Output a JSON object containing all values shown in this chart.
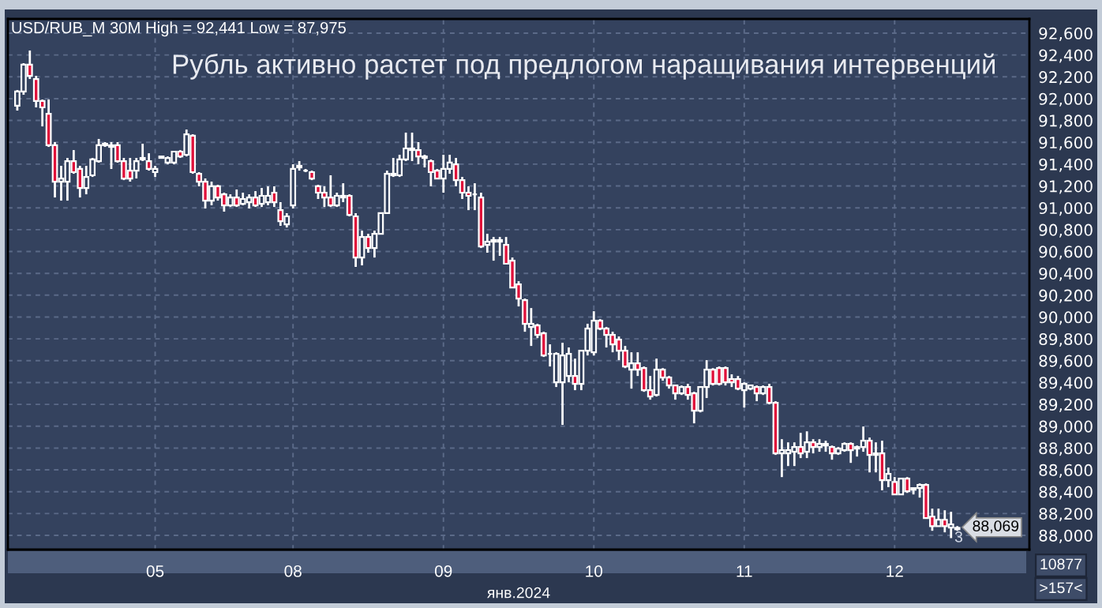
{
  "chart_data": {
    "type": "candlestick",
    "title": "USD/RUB_M 30M High = 92,441 Low = 87,975",
    "subtitle": "Рубль активно растет под предлогом наращивания интервенций",
    "xlabel": "янв.2024",
    "annotations": [
      "88,069",
      "3",
      "10877",
      ">157<"
    ],
    "categories": [
      null,
      null,
      null,
      null,
      null,
      null,
      null,
      null,
      null,
      null,
      null,
      null,
      null,
      null,
      null,
      null,
      null,
      null,
      null,
      null,
      null,
      null,
      "05",
      null,
      null,
      null,
      null,
      null,
      null,
      null,
      null,
      null,
      null,
      null,
      null,
      null,
      null,
      null,
      null,
      null,
      null,
      null,
      null,
      null,
      "08",
      null,
      null,
      null,
      null,
      null,
      null,
      null,
      null,
      null,
      null,
      null,
      null,
      null,
      null,
      null,
      null,
      null,
      null,
      null,
      null,
      null,
      null,
      null,
      "09",
      null,
      null,
      null,
      null,
      null,
      null,
      null,
      null,
      null,
      null,
      null,
      null,
      null,
      null,
      null,
      null,
      null,
      null,
      null,
      null,
      null,
      null,
      null,
      "10",
      null,
      null,
      null,
      null,
      null,
      null,
      null,
      null,
      null,
      null,
      null,
      null,
      null,
      null,
      null,
      null,
      null,
      null,
      null,
      null,
      null,
      null,
      null,
      "11",
      null,
      null,
      null,
      null,
      null,
      null,
      null,
      null,
      null,
      null,
      null,
      null,
      null,
      null,
      null,
      null,
      null,
      null,
      null,
      null,
      null,
      null,
      null,
      "12",
      null,
      null,
      null,
      null,
      null,
      null,
      null,
      null,
      null,
      null
    ],
    "ohlc": [
      [
        91935,
        92079,
        91891,
        92065
      ],
      [
        92065,
        92325,
        92036,
        92311
      ],
      [
        92311,
        92441,
        92180,
        92209
      ],
      [
        92180,
        92209,
        91920,
        91978
      ],
      [
        91978,
        91992,
        91746,
        91920
      ],
      [
        91862,
        91992,
        91558,
        91573
      ],
      [
        91573,
        91602,
        91095,
        91240
      ],
      [
        91240,
        91385,
        91066,
        91269
      ],
      [
        91240,
        91457,
        91066,
        91428
      ],
      [
        91428,
        91529,
        91312,
        91327
      ],
      [
        91356,
        91385,
        91095,
        91182
      ],
      [
        91182,
        91385,
        91124,
        91283
      ],
      [
        91298,
        91457,
        91283,
        91443
      ],
      [
        91428,
        91631,
        91414,
        91573
      ],
      [
        91573,
        91602,
        91558,
        91587
      ],
      [
        91558,
        91602,
        91356,
        91573
      ],
      [
        91573,
        91602,
        91414,
        91428
      ],
      [
        91428,
        91457,
        91254,
        91269
      ],
      [
        91341,
        91457,
        91240,
        91269
      ],
      [
        91341,
        91457,
        91269,
        91428
      ],
      [
        91443,
        91587,
        91428,
        91457
      ],
      [
        91428,
        91500,
        91341,
        91356
      ],
      [
        91327,
        91385,
        91283,
        91356
      ],
      [
        91457,
        91471,
        91457,
        91471
      ],
      [
        91414,
        91471,
        91399,
        91457
      ],
      [
        91414,
        91515,
        91399,
        91515
      ],
      [
        91515,
        91529,
        91457,
        91471
      ],
      [
        91486,
        91717,
        91471,
        91674
      ],
      [
        91660,
        91674,
        91312,
        91327
      ],
      [
        91312,
        91327,
        91197,
        91240
      ],
      [
        91240,
        91269,
        90994,
        91066
      ],
      [
        91066,
        91240,
        91023,
        91197
      ],
      [
        91197,
        91211,
        91066,
        91095
      ],
      [
        91124,
        91139,
        90965,
        91023
      ],
      [
        91023,
        91124,
        91008,
        91095
      ],
      [
        91095,
        91168,
        91008,
        91023
      ],
      [
        91037,
        91139,
        91023,
        91081
      ],
      [
        91052,
        91124,
        90994,
        91095
      ],
      [
        91095,
        91153,
        91008,
        91023
      ],
      [
        91037,
        91182,
        91008,
        91110
      ],
      [
        91052,
        91197,
        91023,
        91110
      ],
      [
        91139,
        91197,
        91008,
        91052
      ],
      [
        90979,
        91052,
        90835,
        90878
      ],
      [
        90849,
        90951,
        90820,
        90922
      ],
      [
        91023,
        91399,
        90994,
        91356
      ],
      [
        91370,
        91428,
        91341,
        91385
      ],
      [
        91341,
        91356,
        91327,
        91341
      ],
      [
        91327,
        91341,
        91254,
        91269
      ],
      [
        91197,
        91211,
        91081,
        91139
      ],
      [
        91139,
        91197,
        91008,
        91095
      ],
      [
        91095,
        91298,
        91008,
        91023
      ],
      [
        91023,
        91139,
        91008,
        91110
      ],
      [
        91095,
        91225,
        91052,
        91110
      ],
      [
        91110,
        91124,
        90922,
        90936
      ],
      [
        90922,
        90951,
        90459,
        90545
      ],
      [
        90545,
        90791,
        90473,
        90733
      ],
      [
        90733,
        90762,
        90589,
        90632
      ],
      [
        90632,
        90791,
        90545,
        90762
      ],
      [
        90762,
        90951,
        90762,
        90951
      ],
      [
        90951,
        91341,
        90951,
        91312
      ],
      [
        91298,
        91457,
        91283,
        91312
      ],
      [
        91298,
        91486,
        91283,
        91443
      ],
      [
        91443,
        91689,
        91428,
        91544
      ],
      [
        91529,
        91689,
        91428,
        91544
      ],
      [
        91529,
        91602,
        91399,
        91471
      ],
      [
        91471,
        91486,
        91370,
        91457
      ],
      [
        91428,
        91443,
        91197,
        91327
      ],
      [
        91341,
        91356,
        91269,
        91269
      ],
      [
        91269,
        91486,
        91139,
        91356
      ],
      [
        91356,
        91486,
        91312,
        91414
      ],
      [
        91399,
        91457,
        91197,
        91254
      ],
      [
        91254,
        91283,
        91081,
        91139
      ],
      [
        91139,
        91197,
        90979,
        91110
      ],
      [
        91124,
        91225,
        90979,
        91124
      ],
      [
        91095,
        91139,
        90632,
        90647
      ],
      [
        90661,
        90762,
        90589,
        90690
      ],
      [
        90690,
        90733,
        90516,
        90705
      ],
      [
        90690,
        90733,
        90560,
        90705
      ],
      [
        90661,
        90733,
        90488,
        90488
      ],
      [
        90516,
        90545,
        90270,
        90270
      ],
      [
        90299,
        90328,
        90097,
        90169
      ],
      [
        90155,
        90169,
        89865,
        89938
      ],
      [
        89909,
        90082,
        89735,
        89938
      ],
      [
        89923,
        89938,
        89807,
        89836
      ],
      [
        89851,
        89865,
        89634,
        89648
      ],
      [
        89663,
        89750,
        89547,
        89663
      ],
      [
        89402,
        89677,
        89359,
        89663
      ],
      [
        89402,
        89764,
        89012,
        89648
      ],
      [
        89460,
        89721,
        89402,
        89663
      ],
      [
        89460,
        89619,
        89330,
        89388
      ],
      [
        89388,
        89692,
        89330,
        89692
      ],
      [
        89692,
        89938,
        89648,
        89894
      ],
      [
        89677,
        90053,
        89648,
        89967
      ],
      [
        89967,
        89981,
        89880,
        89894
      ],
      [
        89894,
        89909,
        89721,
        89836
      ],
      [
        89836,
        89865,
        89677,
        89750
      ],
      [
        89793,
        89822,
        89605,
        89692
      ],
      [
        89692,
        89735,
        89532,
        89547
      ],
      [
        89518,
        89677,
        89344,
        89576
      ],
      [
        89576,
        89677,
        89460,
        89518
      ],
      [
        89532,
        89547,
        89315,
        89330
      ],
      [
        89330,
        89460,
        89243,
        89272
      ],
      [
        89286,
        89619,
        89272,
        89518
      ],
      [
        89518,
        89532,
        89417,
        89446
      ],
      [
        89446,
        89460,
        89344,
        89373
      ],
      [
        89373,
        89373,
        89243,
        89301
      ],
      [
        89301,
        89373,
        89286,
        89359
      ],
      [
        89359,
        89388,
        89243,
        89286
      ],
      [
        89301,
        89315,
        89026,
        89142
      ],
      [
        89142,
        89359,
        89127,
        89359
      ],
      [
        89359,
        89605,
        89258,
        89518
      ],
      [
        89518,
        89532,
        89373,
        89388
      ],
      [
        89532,
        89547,
        89373,
        89388
      ],
      [
        89532,
        89547,
        89373,
        89402
      ],
      [
        89431,
        89475,
        89359,
        89402
      ],
      [
        89431,
        89460,
        89330,
        89344
      ],
      [
        89330,
        89402,
        89171,
        89388
      ],
      [
        89344,
        89373,
        89330,
        89373
      ],
      [
        89359,
        89373,
        89229,
        89301
      ],
      [
        89301,
        89373,
        89286,
        89359
      ],
      [
        89359,
        89388,
        89200,
        89214
      ],
      [
        89214,
        89229,
        88737,
        88751
      ],
      [
        88751,
        88881,
        88534,
        88780
      ],
      [
        88751,
        88852,
        88635,
        88780
      ],
      [
        88766,
        88852,
        88635,
        88809
      ],
      [
        88809,
        88939,
        88708,
        88751
      ],
      [
        88766,
        88953,
        88708,
        88852
      ],
      [
        88852,
        88881,
        88751,
        88809
      ],
      [
        88809,
        88881,
        88766,
        88838
      ],
      [
        88823,
        88867,
        88766,
        88838
      ],
      [
        88809,
        88823,
        88693,
        88751
      ],
      [
        88751,
        88809,
        88737,
        88795
      ],
      [
        88780,
        88852,
        88766,
        88838
      ],
      [
        88838,
        88852,
        88664,
        88780
      ],
      [
        88795,
        88823,
        88722,
        88809
      ],
      [
        88809,
        88997,
        88766,
        88867
      ],
      [
        88867,
        88896,
        88577,
        88737
      ],
      [
        88737,
        88852,
        88577,
        88751
      ],
      [
        88751,
        88867,
        88413,
        88505
      ],
      [
        88505,
        88621,
        88442,
        88563
      ],
      [
        88490,
        88534,
        88375,
        88375
      ],
      [
        88375,
        88520,
        88375,
        88520
      ],
      [
        88520,
        88534,
        88389,
        88404
      ],
      [
        88418,
        88433,
        88375,
        88433
      ],
      [
        88433,
        88476,
        88346,
        88462
      ],
      [
        88462,
        88476,
        88158,
        88158
      ],
      [
        88172,
        88245,
        88042,
        88085
      ],
      [
        88085,
        88245,
        88085,
        88143
      ],
      [
        88143,
        88230,
        88028,
        88085
      ],
      [
        88071,
        88216,
        87975,
        88100
      ],
      [
        88056,
        88085,
        88042,
        88069
      ]
    ],
    "ylim": [
      87870,
      92730
    ],
    "yticks": [
      {
        "value": 88000,
        "label": "88,000"
      },
      {
        "value": 88200,
        "label": "88,200"
      },
      {
        "value": 88400,
        "label": "88,400"
      },
      {
        "value": 88600,
        "label": "88,600"
      },
      {
        "value": 88800,
        "label": "88,800"
      },
      {
        "value": 89000,
        "label": "89,000"
      },
      {
        "value": 89200,
        "label": "89,200"
      },
      {
        "value": 89400,
        "label": "89,400"
      },
      {
        "value": 89600,
        "label": "89,600"
      },
      {
        "value": 89800,
        "label": "89,800"
      },
      {
        "value": 90000,
        "label": "90,000"
      },
      {
        "value": 90200,
        "label": "90,200"
      },
      {
        "value": 90400,
        "label": "90,400"
      },
      {
        "value": 90600,
        "label": "90,600"
      },
      {
        "value": 90800,
        "label": "90,800"
      },
      {
        "value": 91000,
        "label": "91,000"
      },
      {
        "value": 91200,
        "label": "91,200"
      },
      {
        "value": 91400,
        "label": "91,400"
      },
      {
        "value": 91600,
        "label": "91,600"
      },
      {
        "value": 91800,
        "label": "91,800"
      },
      {
        "value": 92000,
        "label": "92,000"
      },
      {
        "value": 92200,
        "label": "92,200"
      },
      {
        "value": 92400,
        "label": "92,400"
      },
      {
        "value": 92600,
        "label": "92,600"
      }
    ],
    "grid": true
  }
}
